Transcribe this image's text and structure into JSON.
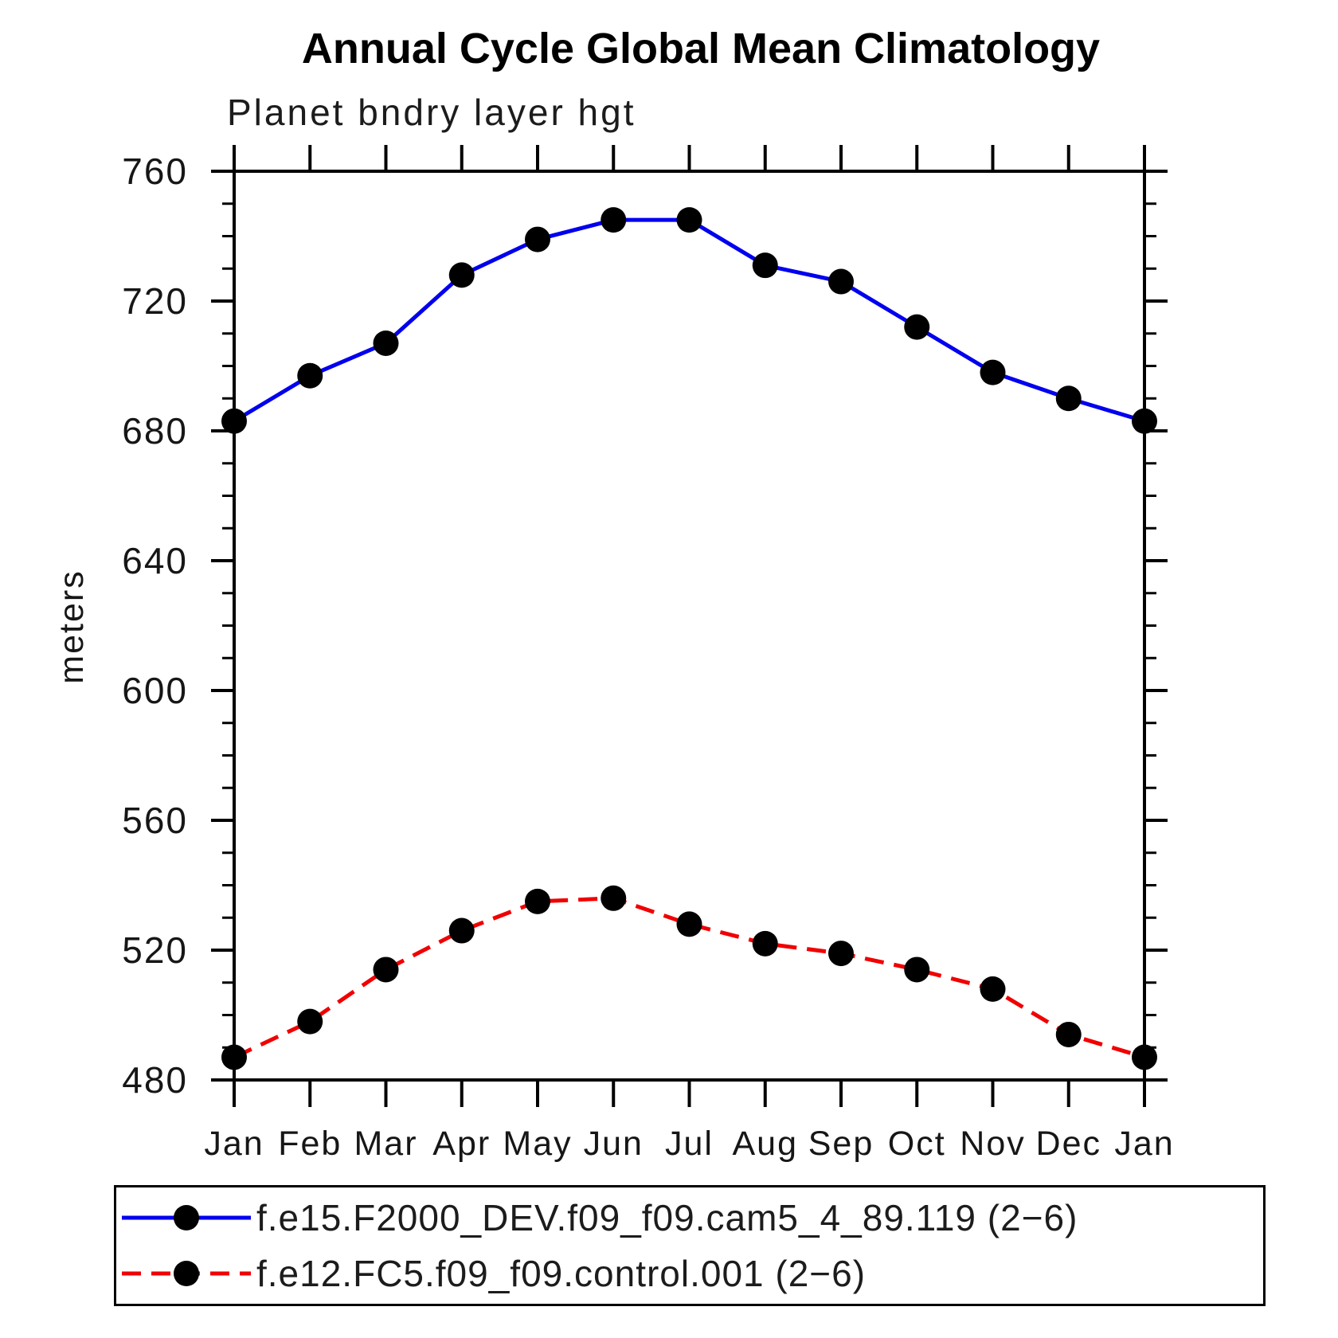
{
  "chart_data": {
    "type": "line",
    "title": "Annual Cycle Global Mean Climatology",
    "subtitle": "Planet bndry layer hgt",
    "ylabel": "meters",
    "categories": [
      "Jan",
      "Feb",
      "Mar",
      "Apr",
      "May",
      "Jun",
      "Jul",
      "Aug",
      "Sep",
      "Oct",
      "Nov",
      "Dec",
      "Jan"
    ],
    "ylim": [
      480,
      760
    ],
    "ytick_major_step": 40,
    "ytick_minor_step": 10,
    "ytick_major_labels": [
      "760",
      "720",
      "680",
      "640",
      "600",
      "560",
      "520",
      "480"
    ],
    "grid": false,
    "legend_position": "bottom",
    "axis_color": "#000000",
    "marker_color": "#000000",
    "series": [
      {
        "name": "f.e15.F2000_DEV.f09_f09.cam5_4_89.119 (2−6)",
        "color": "#0000ee",
        "style": "solid",
        "dash": "none",
        "marker": "circle",
        "values": [
          683,
          697,
          707,
          728,
          739,
          745,
          745,
          731,
          726,
          712,
          698,
          690,
          683
        ]
      },
      {
        "name": "f.e12.FC5.f09_f09.control.001 (2−6)",
        "color": "#f00000",
        "style": "dashed",
        "dash": "24 13",
        "marker": "circle",
        "values": [
          487,
          498,
          514,
          526,
          535,
          536,
          528,
          522,
          519,
          514,
          508,
          494,
          487
        ]
      }
    ]
  }
}
